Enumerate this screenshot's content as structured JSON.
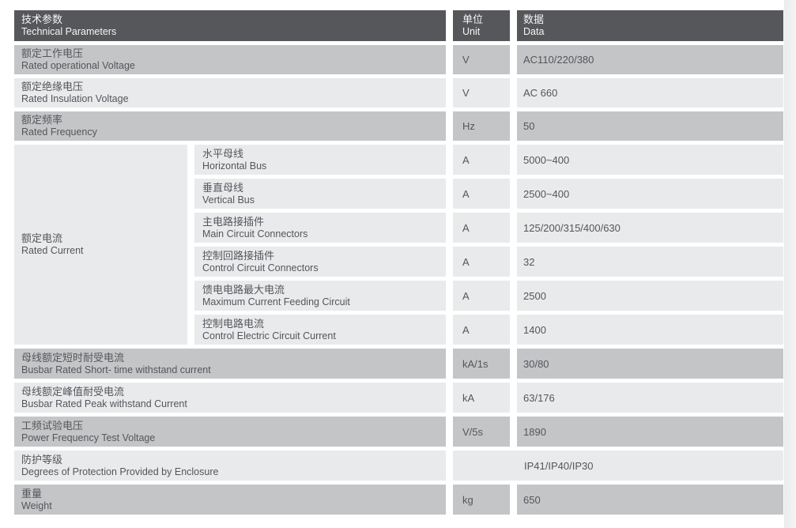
{
  "colors": {
    "header_bg": "#56575a",
    "header_text": "#f5f5f6",
    "row_gray": "#c4c5c7",
    "row_light": "#e9eaeb",
    "body_text": "#55565b",
    "right_shade": "#e9ebed"
  },
  "table": {
    "header": {
      "param_zh": "技术参数",
      "param_en": "Technical Parameters",
      "unit_zh": "单位",
      "unit_en": "Unit",
      "data_zh": "数据",
      "data_en": "Data"
    },
    "rows": [
      {
        "zh": "额定工作电压",
        "en": "Rated operational Voltage",
        "unit": "V",
        "value": "AC110/220/380"
      },
      {
        "zh": "额定绝缘电压",
        "en": "Rated Insulation Voltage",
        "unit": "V",
        "value": "AC 660"
      },
      {
        "zh": "额定频率",
        "en": "Rated Frequency",
        "unit": "Hz",
        "value": "50"
      }
    ],
    "group": {
      "zh": "额定电流",
      "en": "Rated Current",
      "sub": [
        {
          "zh": "水平母线",
          "en": "Horizontal Bus",
          "unit": "A",
          "value": "5000~400"
        },
        {
          "zh": "垂直母线",
          "en": "Vertical Bus",
          "unit": "A",
          "value": "2500~400"
        },
        {
          "zh": "主电路接插件",
          "en": "Main Circuit Connectors",
          "unit": "A",
          "value": "125/200/315/400/630"
        },
        {
          "zh": "控制回路接插件",
          "en": "Control Circuit Connectors",
          "unit": "A",
          "value": "32"
        },
        {
          "zh": "馈电电路最大电流",
          "en": "Maximum Current Feeding Circuit",
          "unit": "A",
          "value": "2500"
        },
        {
          "zh": "控制电路电流",
          "en": "Control Electric Circuit Current",
          "unit": "A",
          "value": "1400"
        }
      ]
    },
    "bottom_rows": [
      {
        "zh": "母线额定短时耐受电流",
        "en": "Busbar Rated Short- time withstand current",
        "unit": "kA/1s",
        "value": "30/80"
      },
      {
        "zh": "母线额定峰值耐受电流",
        "en": "Busbar Rated Peak withstand Current",
        "unit": "kA",
        "value": "63/176"
      },
      {
        "zh": "工频试验电压",
        "en": "Power Frequency Test Voltage",
        "unit": "V/5s",
        "value": "1890"
      },
      {
        "zh": "防护等级",
        "en": "Degrees of Protection Provided by Enclosure",
        "unit": "",
        "value": "IP41/IP40/IP30"
      },
      {
        "zh": "重量",
        "en": "Weight",
        "unit": "kg",
        "value": "650"
      }
    ]
  }
}
